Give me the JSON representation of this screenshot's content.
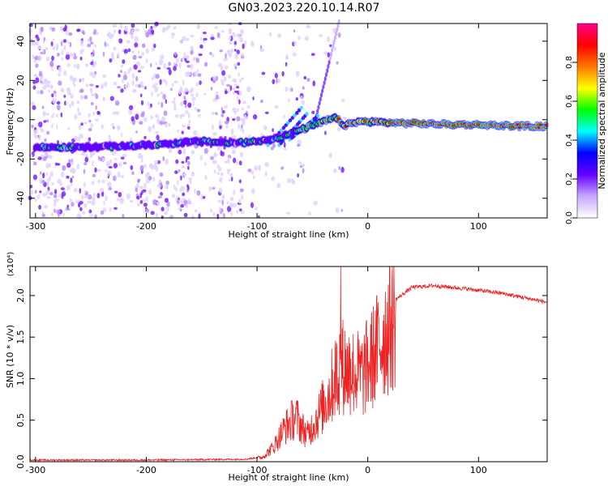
{
  "title": "GN03.2023.220.10.14.R07",
  "chart_data": [
    {
      "type": "heatmap",
      "xlabel": "Height of straight line (km)",
      "ylabel": "Frequency (Hz)",
      "xlim": [
        -305,
        162
      ],
      "ylim": [
        -50,
        49
      ],
      "xticks": [
        -300,
        -200,
        -100,
        0,
        100
      ],
      "yticks": [
        -40,
        -20,
        0,
        20,
        40
      ],
      "colorbar": {
        "label": "Normalized spectral amplitude",
        "range": [
          0,
          1
        ],
        "ticks": [
          "0.0",
          "0.2",
          "0.4",
          "0.6",
          "0.8"
        ],
        "colors": [
          "#ffffff",
          "#c8a8ff",
          "#6600ff",
          "#0000ff",
          "#00ffff",
          "#00ff00",
          "#ffff00",
          "#ff7700",
          "#ff0000",
          "#ff0088"
        ]
      },
      "ridge": [
        {
          "x": -300,
          "y": -14
        },
        {
          "x": -250,
          "y": -14
        },
        {
          "x": -200,
          "y": -13
        },
        {
          "x": -150,
          "y": -11
        },
        {
          "x": -120,
          "y": -12
        },
        {
          "x": -100,
          "y": -11
        },
        {
          "x": -80,
          "y": -9
        },
        {
          "x": -60,
          "y": -5
        },
        {
          "x": -40,
          "y": -1
        },
        {
          "x": -30,
          "y": 1
        },
        {
          "x": -20,
          "y": -3
        },
        {
          "x": -10,
          "y": -1
        },
        {
          "x": 0,
          "y": -1
        },
        {
          "x": 20,
          "y": -1.5
        },
        {
          "x": 50,
          "y": -2
        },
        {
          "x": 80,
          "y": -2.5
        },
        {
          "x": 100,
          "y": -2.5
        },
        {
          "x": 120,
          "y": -3
        },
        {
          "x": 162,
          "y": -3.5
        }
      ]
    },
    {
      "type": "line",
      "xlabel": "Height of straight line (km)",
      "ylabel": "SNR (10 * v/v)",
      "multiplier": "(x10⁴)",
      "xlim": [
        -305,
        162
      ],
      "ylim": [
        0,
        2.35
      ],
      "xticks": [
        -300,
        -200,
        -100,
        0,
        100
      ],
      "yticks": [
        "0.0",
        "0.5",
        "1.0",
        "1.5",
        "2.0"
      ],
      "color": "#ee2222",
      "envelope": [
        {
          "x": -305,
          "y": 0.02
        },
        {
          "x": -200,
          "y": 0.02
        },
        {
          "x": -110,
          "y": 0.03
        },
        {
          "x": -95,
          "y": 0.06
        },
        {
          "x": -85,
          "y": 0.2
        },
        {
          "x": -75,
          "y": 0.45
        },
        {
          "x": -65,
          "y": 0.6
        },
        {
          "x": -55,
          "y": 0.35
        },
        {
          "x": -45,
          "y": 0.6
        },
        {
          "x": -35,
          "y": 0.9
        },
        {
          "x": -25,
          "y": 1.3
        },
        {
          "x": -15,
          "y": 1.2
        },
        {
          "x": -5,
          "y": 1.15
        },
        {
          "x": 5,
          "y": 1.4
        },
        {
          "x": 15,
          "y": 1.7
        },
        {
          "x": 25,
          "y": 1.95
        },
        {
          "x": 40,
          "y": 2.1
        },
        {
          "x": 60,
          "y": 2.12
        },
        {
          "x": 90,
          "y": 2.08
        },
        {
          "x": 120,
          "y": 2.03
        },
        {
          "x": 162,
          "y": 1.92
        }
      ]
    }
  ]
}
